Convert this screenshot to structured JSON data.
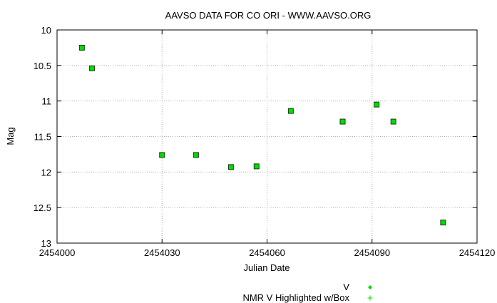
{
  "chart_data": {
    "type": "scatter",
    "title": "AAVSO DATA FOR CO ORI - WWW.AAVSO.ORG",
    "xlabel": "Julian Date",
    "ylabel": "Mag",
    "xlim": [
      2454000,
      2454120
    ],
    "ylim": [
      10,
      13
    ],
    "y_inverted": true,
    "grid": true,
    "legend_position": "bottom",
    "x_ticks": [
      2454000,
      2454030,
      2454060,
      2454090,
      2454120
    ],
    "x_tick_labels": [
      "2454000",
      "2454030",
      "2454060",
      "2454090",
      "2454120"
    ],
    "y_ticks": [
      10,
      10.5,
      11,
      11.5,
      12,
      12.5,
      13
    ],
    "y_tick_labels": [
      "10",
      "10.5",
      "11",
      "11.5",
      "12",
      "12.5",
      "13"
    ],
    "series": [
      {
        "name": "V",
        "color": "#00dd00",
        "marker": "square-with-box",
        "x": [
          2454007.1,
          2454010.0,
          2454030.0,
          2454039.7,
          2454049.7,
          2454057.0,
          2454066.8,
          2454081.6,
          2454091.3,
          2454096.1,
          2454110.3
        ],
        "y": [
          10.25,
          10.54,
          11.76,
          11.76,
          11.93,
          11.92,
          11.14,
          11.29,
          11.05,
          11.29,
          12.71
        ]
      }
    ],
    "legend": [
      {
        "label": "V",
        "symbol": "diamond",
        "color": "#00dd00"
      },
      {
        "label": "NMR V Highlighted w/Box",
        "symbol": "plus",
        "color": "#00dd00"
      }
    ]
  }
}
